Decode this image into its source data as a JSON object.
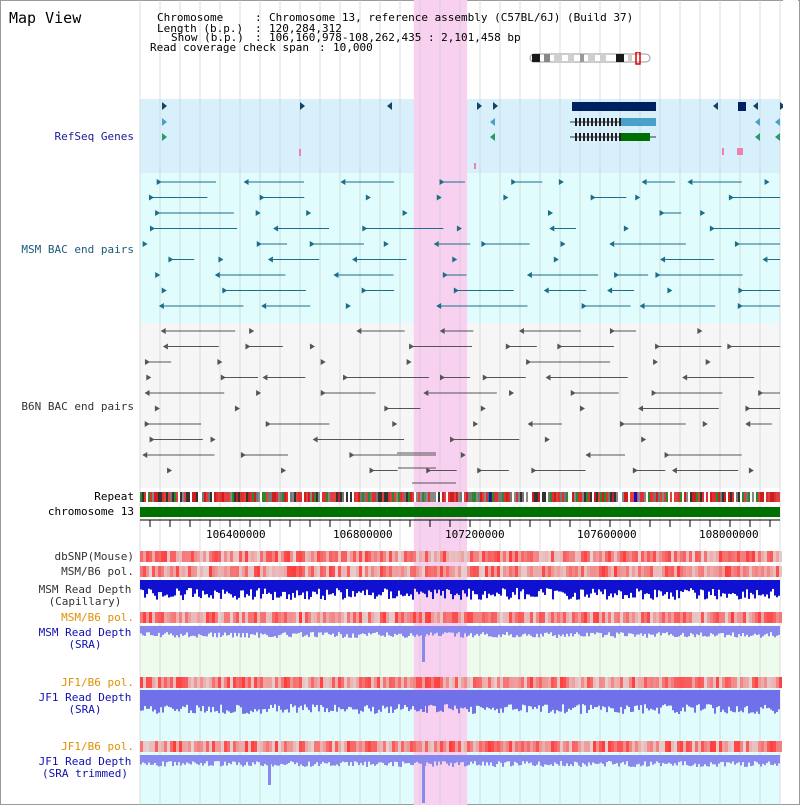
{
  "app": {
    "title": "Map View"
  },
  "info": {
    "chromosome_key": "Chromosome",
    "chromosome_value": "Chromosome 13, reference assembly (C57BL/6J) (Build 37)",
    "length_key": "Length (b.p.)",
    "length_value": "120,284,312",
    "show_key": "Show (b.p.)",
    "show_value": "106,160,978-108,262,435 : 2,101,458 bp",
    "span_key": "Read coverage check span",
    "span_value": "10,000"
  },
  "tracks": {
    "refseq": {
      "label": "RefSeq Genes",
      "color": "#1a1a9a"
    },
    "msm_bac": {
      "label": "MSM BAC end pairs",
      "color": "#1a5a7a"
    },
    "b6n_bac": {
      "label": "B6N BAC end pairs",
      "color": "#333333"
    },
    "repeat": {
      "label": "Repeat"
    },
    "chromosome": {
      "label": "chromosome 13"
    },
    "dbsnp": {
      "label": "dbSNP(Mouse)"
    },
    "msm_b6_pol_1": {
      "label": "MSM/B6 pol."
    },
    "msm_depth_cap": {
      "label_line1": "MSM Read Depth",
      "label_line2": "(Capillary)"
    },
    "msm_b6_pol_2": {
      "label": "MSM/B6 pol.",
      "color": "#e09000"
    },
    "msm_depth_sra": {
      "label_line1": "MSM Read Depth",
      "label_line2": "(SRA)",
      "color": "#1010b0"
    },
    "jf1_b6_pol_1": {
      "label": "JF1/B6 pol.",
      "color": "#e09000"
    },
    "jf1_depth_sra": {
      "label_line1": "JF1 Read Depth",
      "label_line2": "(SRA)",
      "color": "#1010b0"
    },
    "jf1_b6_pol_2": {
      "label": "JF1/B6 pol.",
      "color": "#e09000"
    },
    "jf1_depth_trim": {
      "label_line1": "JF1 Read Depth",
      "label_line2": "(SRA trimmed)",
      "color": "#1010b0"
    }
  },
  "axis": {
    "ticks": [
      "106400000",
      "106800000",
      "107200000",
      "107600000",
      "108000000"
    ],
    "range_start": 106160978,
    "range_end": 108262435
  },
  "highlight": {
    "start": 107060000,
    "end": 107235000,
    "color": "#f8d0f0"
  },
  "colors": {
    "grid": "#c8c8c8",
    "refseq_bg": "#d8f0fc",
    "msm_bg": "#e0fcfc",
    "b6n_bg": "#f6f6f6",
    "sra_bg": "#eefcee",
    "jf1_bg": "#e0fcfc",
    "chromosome": "#007000",
    "gene_dark": "#002060",
    "gene_mid": "#4aa0c8",
    "gene_green": "#007000",
    "bac_teal": "#1a6e8a",
    "bac_gray": "#555555"
  }
}
